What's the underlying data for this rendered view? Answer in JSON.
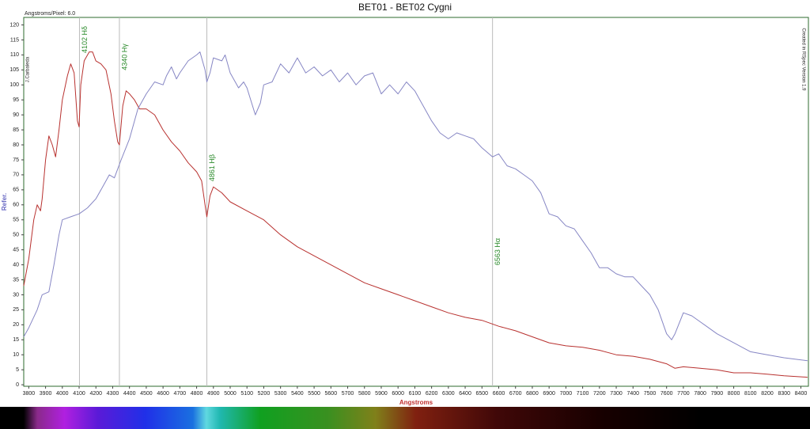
{
  "chart_data": {
    "type": "line",
    "title": "BET01 - BET02 Cygni",
    "subtitle": "Angstroms/Pixel: 6.0",
    "x_label": "Angstroms",
    "y_label": "Refer.",
    "observer": "J.Carbaleda",
    "credit": "Created in RSpec Version 1.9",
    "xlim": [
      3770,
      8445
    ],
    "ylim": [
      -0.5,
      122.5
    ],
    "xticks": [
      3800,
      3900,
      4000,
      4100,
      4200,
      4300,
      4400,
      4500,
      4600,
      4700,
      4800,
      4900,
      5000,
      5100,
      5200,
      5300,
      5400,
      5500,
      5600,
      5700,
      5800,
      5900,
      6000,
      6100,
      6200,
      6300,
      6400,
      6500,
      6600,
      6700,
      6800,
      6900,
      7000,
      7100,
      7200,
      7300,
      7400,
      7500,
      7600,
      7700,
      7800,
      7900,
      8000,
      8100,
      8200,
      8300,
      8400
    ],
    "yticks": [
      0,
      5,
      10,
      15,
      20,
      25,
      30,
      35,
      40,
      45,
      50,
      55,
      60,
      65,
      70,
      75,
      80,
      85,
      90,
      95,
      100,
      105,
      110,
      115,
      120
    ],
    "annotations": [
      {
        "x": 4102,
        "label": "4102 Hδ"
      },
      {
        "x": 4340,
        "label": "4340 Hγ"
      },
      {
        "x": 4861,
        "label": "4861 Hβ"
      },
      {
        "x": 6563,
        "label": "6563 Hα"
      }
    ],
    "series": [
      {
        "color": "#b8312f",
        "x": [
          3770,
          3800,
          3830,
          3850,
          3870,
          3880,
          3900,
          3920,
          3940,
          3960,
          3980,
          4000,
          4030,
          4050,
          4070,
          4090,
          4100,
          4110,
          4130,
          4160,
          4180,
          4200,
          4230,
          4260,
          4290,
          4310,
          4330,
          4340,
          4360,
          4380,
          4400,
          4430,
          4460,
          4500,
          4550,
          4600,
          4650,
          4700,
          4750,
          4800,
          4830,
          4850,
          4861,
          4880,
          4900,
          4950,
          5000,
          5100,
          5200,
          5300,
          5400,
          5500,
          5600,
          5700,
          5800,
          5900,
          6000,
          6100,
          6200,
          6300,
          6400,
          6500,
          6600,
          6700,
          6800,
          6900,
          7000,
          7100,
          7200,
          7300,
          7400,
          7500,
          7600,
          7650,
          7700,
          7800,
          7900,
          8000,
          8100,
          8200,
          8300,
          8440
        ],
        "values": [
          33,
          42,
          55,
          60,
          58,
          62,
          75,
          83,
          80,
          76,
          85,
          95,
          103,
          107,
          104,
          88,
          86,
          100,
          108,
          111,
          111,
          108,
          107,
          105,
          97,
          88,
          81,
          80,
          93,
          98,
          97,
          95,
          92,
          92,
          90,
          85,
          81,
          78,
          74,
          71,
          68,
          60,
          56,
          63,
          66,
          64,
          61,
          58,
          55,
          50,
          46,
          43,
          40,
          37,
          34,
          32,
          30,
          28,
          26,
          24,
          22.5,
          21.5,
          19.5,
          18,
          16,
          14,
          13,
          12.5,
          11.5,
          10,
          9.5,
          8.5,
          7,
          5.5,
          6,
          5.5,
          5,
          4,
          4,
          3.5,
          3,
          2.5
        ]
      },
      {
        "color": "#8686c4",
        "x": [
          3770,
          3800,
          3850,
          3880,
          3920,
          3950,
          3980,
          4000,
          4050,
          4100,
          4150,
          4200,
          4250,
          4280,
          4310,
          4350,
          4400,
          4450,
          4500,
          4550,
          4600,
          4620,
          4650,
          4680,
          4700,
          4750,
          4800,
          4820,
          4850,
          4861,
          4880,
          4900,
          4950,
          4970,
          5000,
          5050,
          5080,
          5100,
          5150,
          5180,
          5200,
          5250,
          5300,
          5350,
          5400,
          5450,
          5500,
          5550,
          5600,
          5650,
          5700,
          5750,
          5800,
          5850,
          5900,
          5950,
          6000,
          6050,
          6100,
          6150,
          6200,
          6250,
          6300,
          6350,
          6400,
          6450,
          6500,
          6563,
          6600,
          6650,
          6700,
          6750,
          6800,
          6850,
          6900,
          6950,
          7000,
          7050,
          7100,
          7150,
          7200,
          7250,
          7300,
          7350,
          7400,
          7450,
          7500,
          7550,
          7600,
          7630,
          7650,
          7700,
          7750,
          7800,
          7900,
          8000,
          8100,
          8200,
          8300,
          8440
        ],
        "values": [
          16,
          19,
          25,
          30,
          31,
          40,
          50,
          55,
          56,
          57,
          59,
          62,
          67,
          70,
          69,
          75,
          82,
          92,
          97,
          101,
          100,
          103,
          106,
          102,
          104,
          108,
          110,
          111,
          105,
          101,
          104,
          109,
          108,
          110,
          104,
          99,
          101,
          99,
          90,
          94,
          100,
          101,
          107,
          104,
          109,
          104,
          106,
          103,
          105,
          101,
          104,
          100,
          103,
          104,
          97,
          100,
          97,
          101,
          98,
          93,
          88,
          84,
          82,
          84,
          83,
          82,
          79,
          76,
          77,
          73,
          72,
          70,
          68,
          64,
          57,
          56,
          53,
          52,
          48,
          44,
          39,
          39,
          37,
          36,
          36,
          33,
          30,
          25,
          17,
          15,
          17,
          24,
          23,
          21,
          17,
          14,
          11,
          10,
          9,
          8
        ]
      }
    ]
  }
}
